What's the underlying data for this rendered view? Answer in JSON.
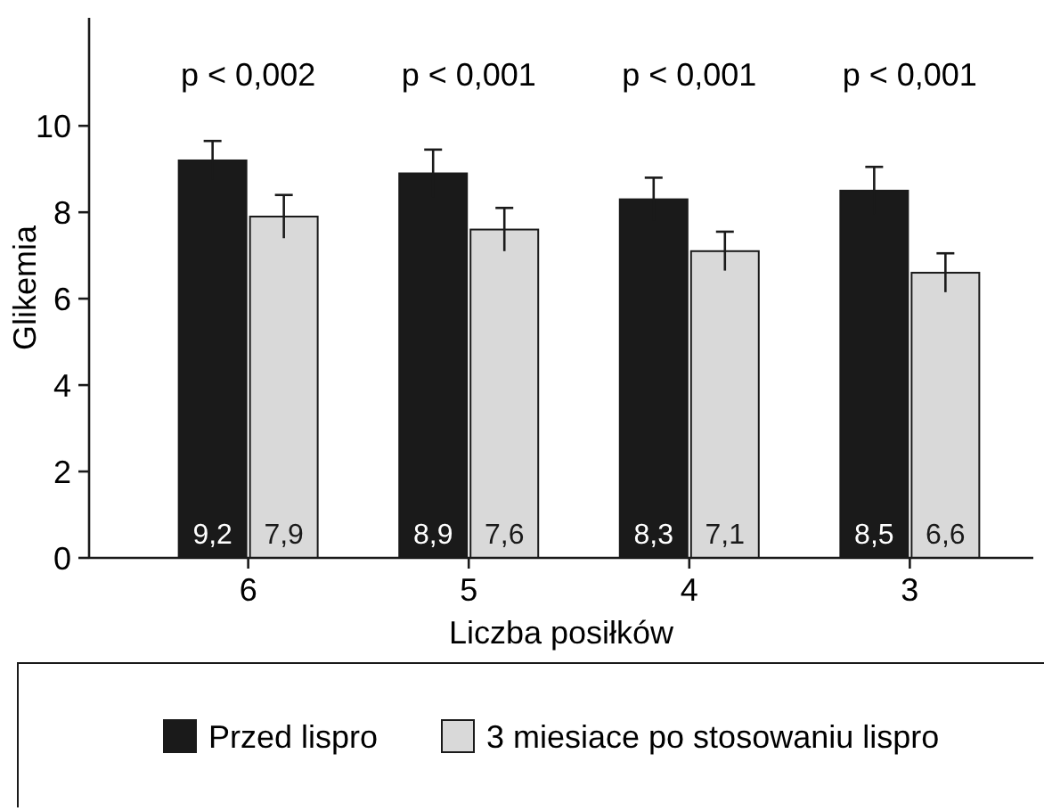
{
  "chart_data": {
    "type": "bar",
    "ylabel": "Glikemia",
    "xlabel": "Liczba posiłków",
    "categories": [
      "6",
      "5",
      "4",
      "3"
    ],
    "series": [
      {
        "name": "Przed lispro",
        "color": "#1a1a1a",
        "values": [
          9.2,
          8.9,
          8.3,
          8.5
        ],
        "errors": [
          0.45,
          0.55,
          0.5,
          0.55
        ],
        "value_labels": [
          "9,2",
          "8,9",
          "8,3",
          "8,5"
        ]
      },
      {
        "name": "3 miesiace po stosowaniu lispro",
        "color": "#d9d9d9",
        "values": [
          7.9,
          7.6,
          7.1,
          6.6
        ],
        "errors": [
          0.5,
          0.5,
          0.45,
          0.45
        ],
        "value_labels": [
          "7,9",
          "7,6",
          "7,1",
          "6,6"
        ]
      }
    ],
    "ylim": [
      0,
      12.5
    ],
    "yticks": [
      0,
      2,
      4,
      6,
      8,
      10
    ],
    "grid": false,
    "legend": "bottom",
    "annotations": [
      "p < 0,002",
      "p < 0,001",
      "p < 0,001",
      "p < 0,001"
    ]
  }
}
